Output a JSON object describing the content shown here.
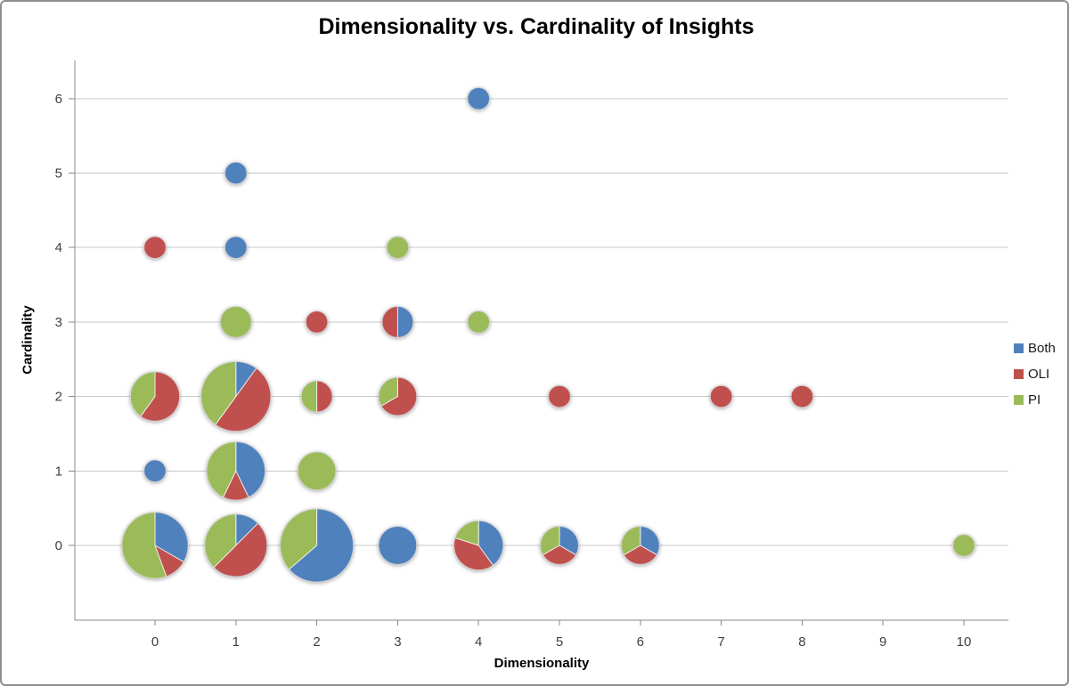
{
  "chart_data": {
    "type": "scatter",
    "variant": "bubble-pie",
    "title": "Dimensionality vs. Cardinality of Insights",
    "xlabel": "Dimensionality",
    "ylabel": "Cardinality",
    "x_ticks": [
      0,
      1,
      2,
      3,
      4,
      5,
      6,
      7,
      8,
      9,
      10
    ],
    "y_ticks": [
      0,
      1,
      2,
      3,
      4,
      5,
      6
    ],
    "xlim": [
      -1,
      10.6
    ],
    "ylim": [
      -1,
      6.5
    ],
    "grid": "horizontal",
    "legend_position": "right",
    "series": [
      {
        "key": "both",
        "name": "Both",
        "color": "#4F81BD"
      },
      {
        "key": "oli",
        "name": "OLI",
        "color": "#C0504D"
      },
      {
        "key": "pi",
        "name": "PI",
        "color": "#9BBB59"
      }
    ],
    "size_encoding": "bubble area proportional to total count; radius_px = 12.4 * sqrt(both+oli+pi); slices clockwise from top in order Both, OLI, PI",
    "points": [
      {
        "x": 0,
        "cardinality": 0,
        "both": 3,
        "oli": 1,
        "pi": 5
      },
      {
        "x": 1,
        "cardinality": 0,
        "both": 1,
        "oli": 4,
        "pi": 3
      },
      {
        "x": 2,
        "cardinality": 0,
        "both": 7,
        "oli": 0,
        "pi": 4
      },
      {
        "x": 3,
        "cardinality": 0,
        "both": 3,
        "oli": 0,
        "pi": 0
      },
      {
        "x": 4,
        "cardinality": 0,
        "both": 2,
        "oli": 2,
        "pi": 1
      },
      {
        "x": 5,
        "cardinality": 0,
        "both": 1,
        "oli": 1,
        "pi": 1
      },
      {
        "x": 6,
        "cardinality": 0,
        "both": 1,
        "oli": 1,
        "pi": 1
      },
      {
        "x": 10,
        "cardinality": 0,
        "both": 0,
        "oli": 0,
        "pi": 1
      },
      {
        "x": 0,
        "cardinality": 1,
        "both": 1,
        "oli": 0,
        "pi": 0
      },
      {
        "x": 1,
        "cardinality": 1,
        "both": 3,
        "oli": 1,
        "pi": 3
      },
      {
        "x": 2,
        "cardinality": 1,
        "both": 0,
        "oli": 0,
        "pi": 3
      },
      {
        "x": 0,
        "cardinality": 2,
        "both": 0,
        "oli": 3,
        "pi": 2
      },
      {
        "x": 1,
        "cardinality": 2,
        "both": 1,
        "oli": 5,
        "pi": 4
      },
      {
        "x": 2,
        "cardinality": 2,
        "both": 0,
        "oli": 1,
        "pi": 1
      },
      {
        "x": 3,
        "cardinality": 2,
        "both": 0,
        "oli": 2,
        "pi": 1
      },
      {
        "x": 5,
        "cardinality": 2,
        "both": 0,
        "oli": 1,
        "pi": 0
      },
      {
        "x": 7,
        "cardinality": 2,
        "both": 0,
        "oli": 1,
        "pi": 0
      },
      {
        "x": 8,
        "cardinality": 2,
        "both": 0,
        "oli": 1,
        "pi": 0
      },
      {
        "x": 1,
        "cardinality": 3,
        "both": 0,
        "oli": 0,
        "pi": 2
      },
      {
        "x": 2,
        "cardinality": 3,
        "both": 0,
        "oli": 1,
        "pi": 0
      },
      {
        "x": 3,
        "cardinality": 3,
        "both": 1,
        "oli": 1,
        "pi": 0
      },
      {
        "x": 4,
        "cardinality": 3,
        "both": 0,
        "oli": 0,
        "pi": 1
      },
      {
        "x": 0,
        "cardinality": 4,
        "both": 0,
        "oli": 1,
        "pi": 0
      },
      {
        "x": 1,
        "cardinality": 4,
        "both": 1,
        "oli": 0,
        "pi": 0
      },
      {
        "x": 3,
        "cardinality": 4,
        "both": 0,
        "oli": 0,
        "pi": 1
      },
      {
        "x": 1,
        "cardinality": 5,
        "both": 1,
        "oli": 0,
        "pi": 0
      },
      {
        "x": 4,
        "cardinality": 6,
        "both": 1,
        "oli": 0,
        "pi": 0
      }
    ]
  }
}
